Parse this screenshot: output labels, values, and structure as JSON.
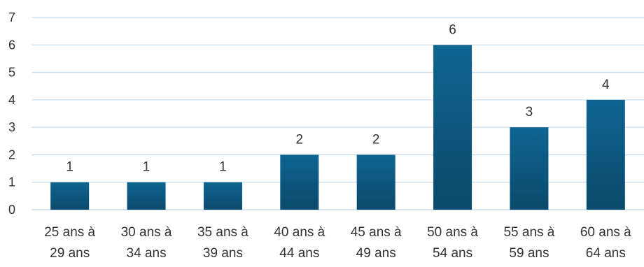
{
  "chart_data": {
    "type": "bar",
    "categories": [
      [
        "25 ans à",
        "29 ans"
      ],
      [
        "30 ans à",
        "34 ans"
      ],
      [
        "35 ans à",
        "39 ans"
      ],
      [
        "40 ans à",
        "44 ans"
      ],
      [
        "45 ans à",
        "49 ans"
      ],
      [
        "50 ans à",
        "54 ans"
      ],
      [
        "55 ans à",
        "59 ans"
      ],
      [
        "60 ans à",
        "64 ans"
      ]
    ],
    "values": [
      1,
      1,
      1,
      2,
      2,
      6,
      3,
      4
    ],
    "ylim": [
      0,
      7
    ],
    "yticks": [
      0,
      1,
      2,
      3,
      4,
      5,
      6,
      7
    ],
    "grid": true,
    "data_labels": true,
    "colors": {
      "bar_top": "#0e6491",
      "bar_bottom": "#0b4a6c",
      "grid": "#c9dff0",
      "axis": "#c9dff0"
    }
  }
}
